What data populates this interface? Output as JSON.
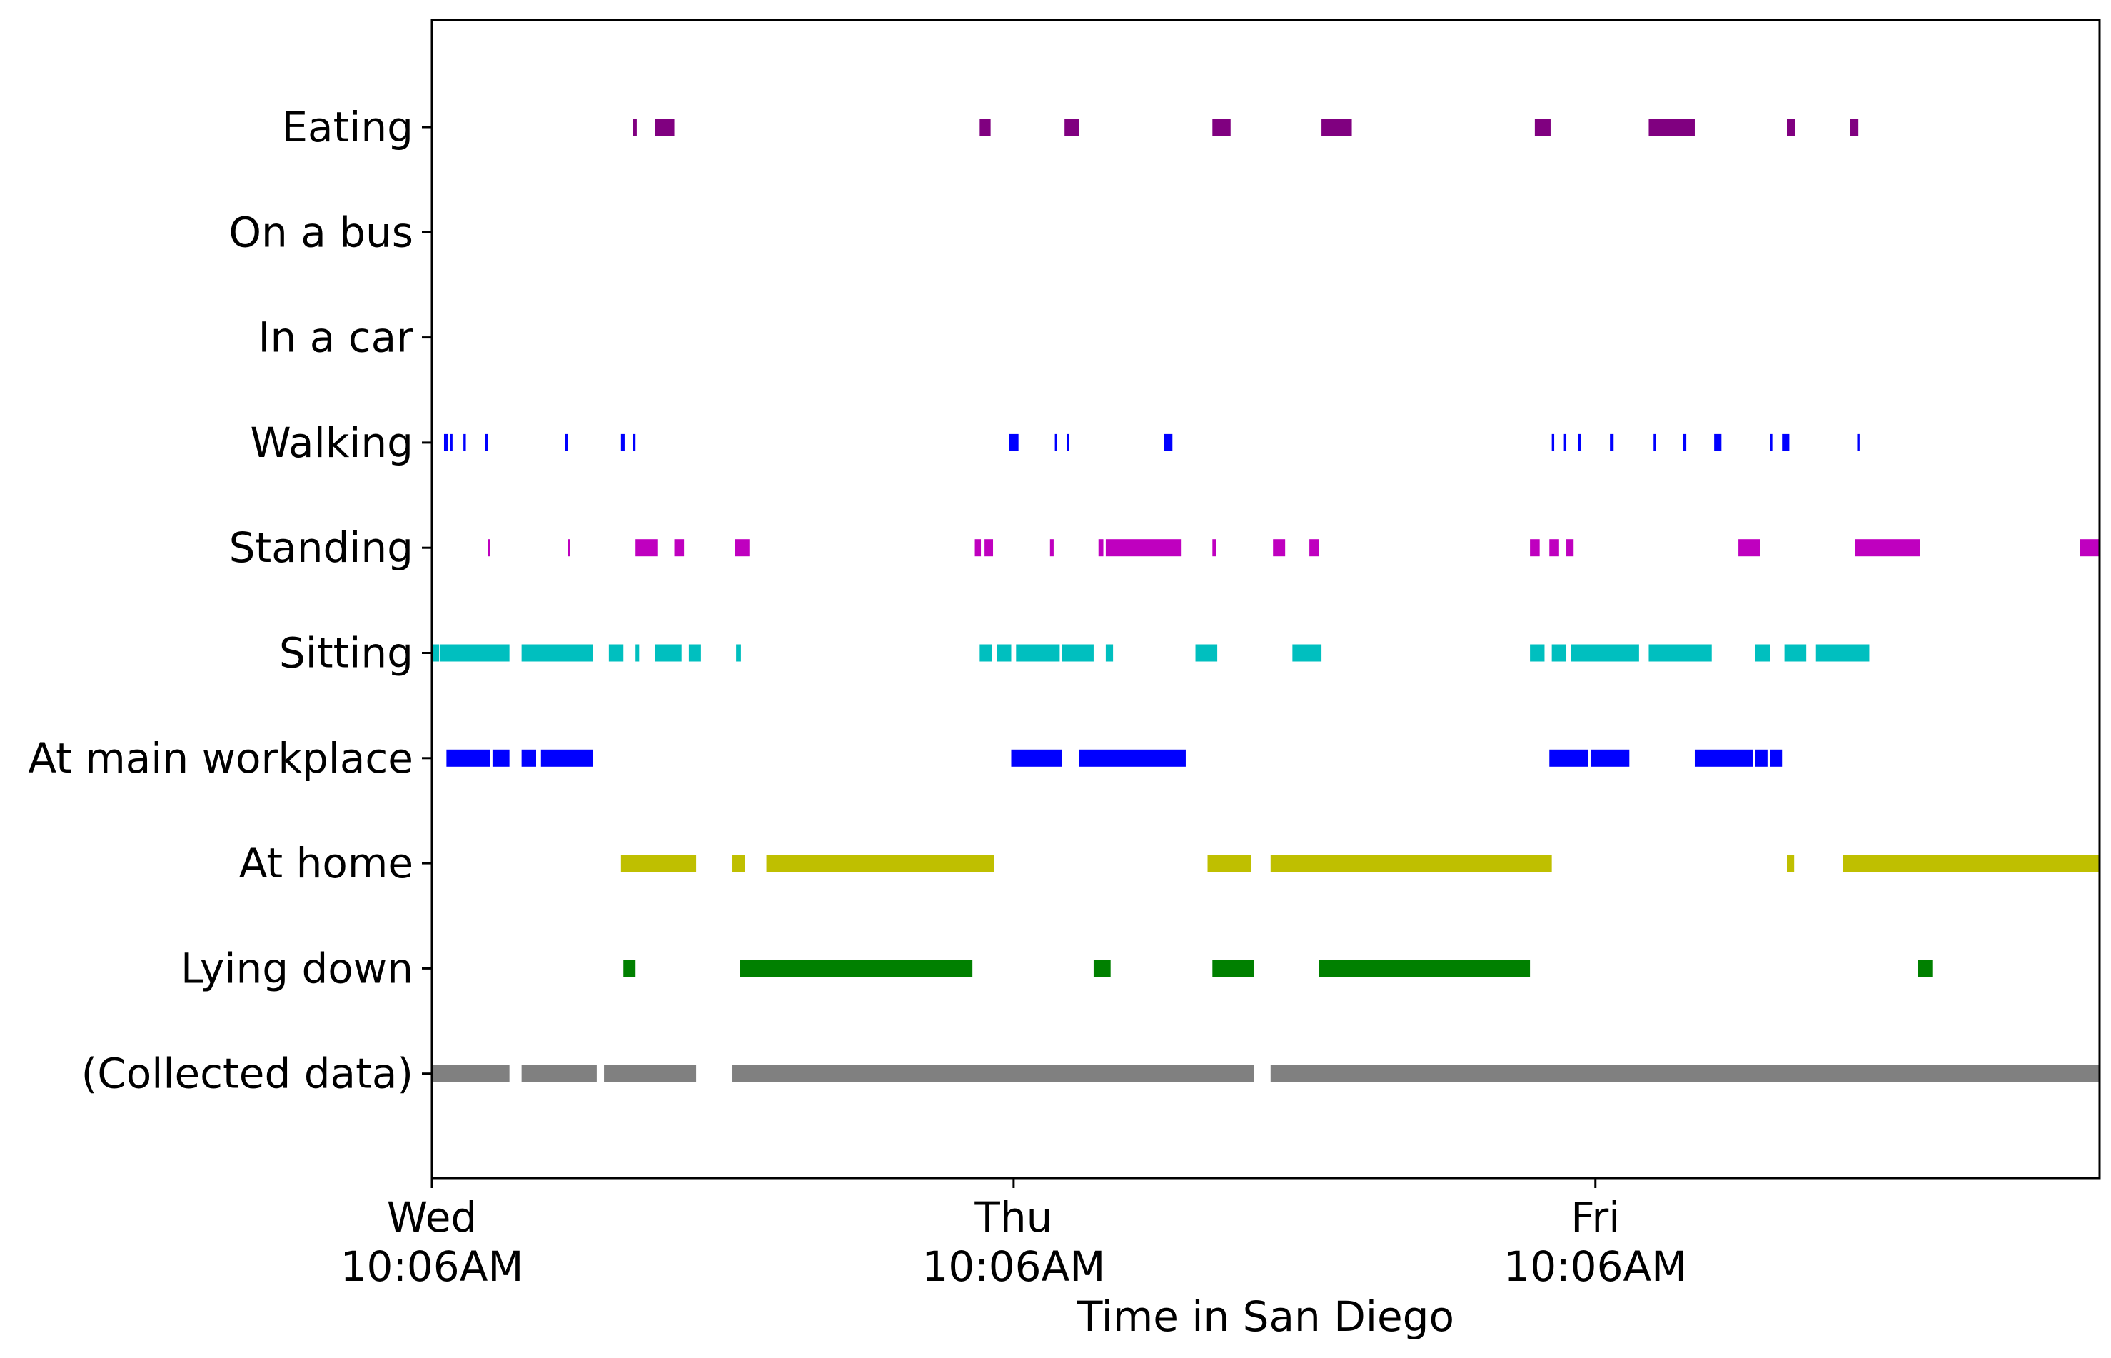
{
  "chart_data": {
    "type": "timeline",
    "xlabel": "Time in San Diego",
    "ylabel": "",
    "x_unit": "hours since Wed 10:06AM",
    "xlim": [
      0,
      68.8
    ],
    "x_ticks": [
      {
        "value": 0,
        "day": "Wed",
        "time": "10:06AM"
      },
      {
        "value": 24,
        "day": "Thu",
        "time": "10:06AM"
      },
      {
        "value": 48,
        "day": "Fri",
        "time": "10:06AM"
      }
    ],
    "grid": false,
    "legend": "none",
    "rows": [
      {
        "label": "Eating",
        "color": "#800080",
        "intervals": [
          [
            8.3,
            8.45
          ],
          [
            9.2,
            10.0
          ],
          [
            22.6,
            23.05
          ],
          [
            26.1,
            26.7
          ],
          [
            32.2,
            32.95
          ],
          [
            36.7,
            37.95
          ],
          [
            45.5,
            46.15
          ],
          [
            50.2,
            52.1
          ],
          [
            55.9,
            56.25
          ],
          [
            58.5,
            58.85
          ]
        ]
      },
      {
        "label": "On a bus",
        "color": "#0000ff",
        "intervals": []
      },
      {
        "label": "In a car",
        "color": "#0000ff",
        "intervals": []
      },
      {
        "label": "Walking",
        "color": "#0000ff",
        "intervals": [
          [
            0.5,
            0.65
          ],
          [
            0.75,
            0.85
          ],
          [
            1.3,
            1.4
          ],
          [
            2.2,
            2.3
          ],
          [
            5.5,
            5.6
          ],
          [
            7.8,
            7.95
          ],
          [
            8.3,
            8.4
          ],
          [
            23.8,
            24.2
          ],
          [
            25.7,
            25.8
          ],
          [
            26.2,
            26.3
          ],
          [
            30.2,
            30.55
          ],
          [
            46.2,
            46.3
          ],
          [
            46.7,
            46.8
          ],
          [
            47.3,
            47.4
          ],
          [
            48.6,
            48.75
          ],
          [
            50.4,
            50.5
          ],
          [
            51.6,
            51.75
          ],
          [
            52.9,
            53.2
          ],
          [
            55.2,
            55.3
          ],
          [
            55.7,
            56.0
          ],
          [
            58.8,
            58.9
          ]
        ]
      },
      {
        "label": "Standing",
        "color": "#bf00bf",
        "intervals": [
          [
            2.3,
            2.4
          ],
          [
            5.6,
            5.7
          ],
          [
            8.4,
            9.3
          ],
          [
            10.0,
            10.4
          ],
          [
            12.5,
            13.1
          ],
          [
            22.4,
            22.65
          ],
          [
            22.8,
            23.15
          ],
          [
            25.5,
            25.65
          ],
          [
            27.5,
            27.7
          ],
          [
            27.8,
            30.9
          ],
          [
            32.2,
            32.35
          ],
          [
            34.7,
            35.2
          ],
          [
            36.2,
            36.6
          ],
          [
            45.3,
            45.7
          ],
          [
            46.1,
            46.5
          ],
          [
            46.8,
            47.1
          ],
          [
            53.9,
            54.8
          ],
          [
            58.7,
            61.4
          ],
          [
            68.0,
            68.8
          ]
        ]
      },
      {
        "label": "Sitting",
        "color": "#00bfbf",
        "intervals": [
          [
            0,
            0.3
          ],
          [
            0.35,
            3.2
          ],
          [
            3.7,
            6.65
          ],
          [
            7.3,
            7.9
          ],
          [
            8.4,
            8.55
          ],
          [
            9.2,
            10.3
          ],
          [
            10.6,
            11.1
          ],
          [
            12.55,
            12.75
          ],
          [
            22.6,
            23.1
          ],
          [
            23.3,
            23.9
          ],
          [
            24.1,
            25.9
          ],
          [
            26.0,
            27.3
          ],
          [
            27.8,
            28.1
          ],
          [
            31.5,
            32.4
          ],
          [
            35.5,
            36.7
          ],
          [
            45.3,
            45.9
          ],
          [
            46.2,
            46.8
          ],
          [
            47.0,
            49.8
          ],
          [
            50.2,
            52.8
          ],
          [
            54.6,
            55.2
          ],
          [
            55.8,
            56.7
          ],
          [
            57.1,
            59.3
          ]
        ]
      },
      {
        "label": "At main workplace",
        "color": "#0000ff",
        "intervals": [
          [
            0.6,
            2.4
          ],
          [
            2.5,
            3.2
          ],
          [
            3.7,
            4.3
          ],
          [
            4.5,
            6.65
          ],
          [
            23.9,
            26.0
          ],
          [
            26.7,
            31.1
          ],
          [
            46.1,
            47.7
          ],
          [
            47.8,
            49.4
          ],
          [
            52.1,
            54.5
          ],
          [
            54.6,
            55.1
          ],
          [
            55.2,
            55.7
          ]
        ]
      },
      {
        "label": "At home",
        "color": "#bfbf00",
        "intervals": [
          [
            7.8,
            10.9
          ],
          [
            12.4,
            12.9
          ],
          [
            13.8,
            23.2
          ],
          [
            32.0,
            33.8
          ],
          [
            34.6,
            46.2
          ],
          [
            55.9,
            56.2
          ],
          [
            58.2,
            68.8
          ]
        ]
      },
      {
        "label": "Lying down",
        "color": "#008000",
        "intervals": [
          [
            7.9,
            8.4
          ],
          [
            12.7,
            22.3
          ],
          [
            27.3,
            28.0
          ],
          [
            32.2,
            33.9
          ],
          [
            36.6,
            45.3
          ],
          [
            61.3,
            61.9
          ]
        ]
      },
      {
        "label": "(Collected data)",
        "color": "#808080",
        "intervals": [
          [
            0,
            3.2
          ],
          [
            3.7,
            6.8
          ],
          [
            7.1,
            10.9
          ],
          [
            12.4,
            33.9
          ],
          [
            34.6,
            68.8
          ]
        ]
      }
    ]
  }
}
